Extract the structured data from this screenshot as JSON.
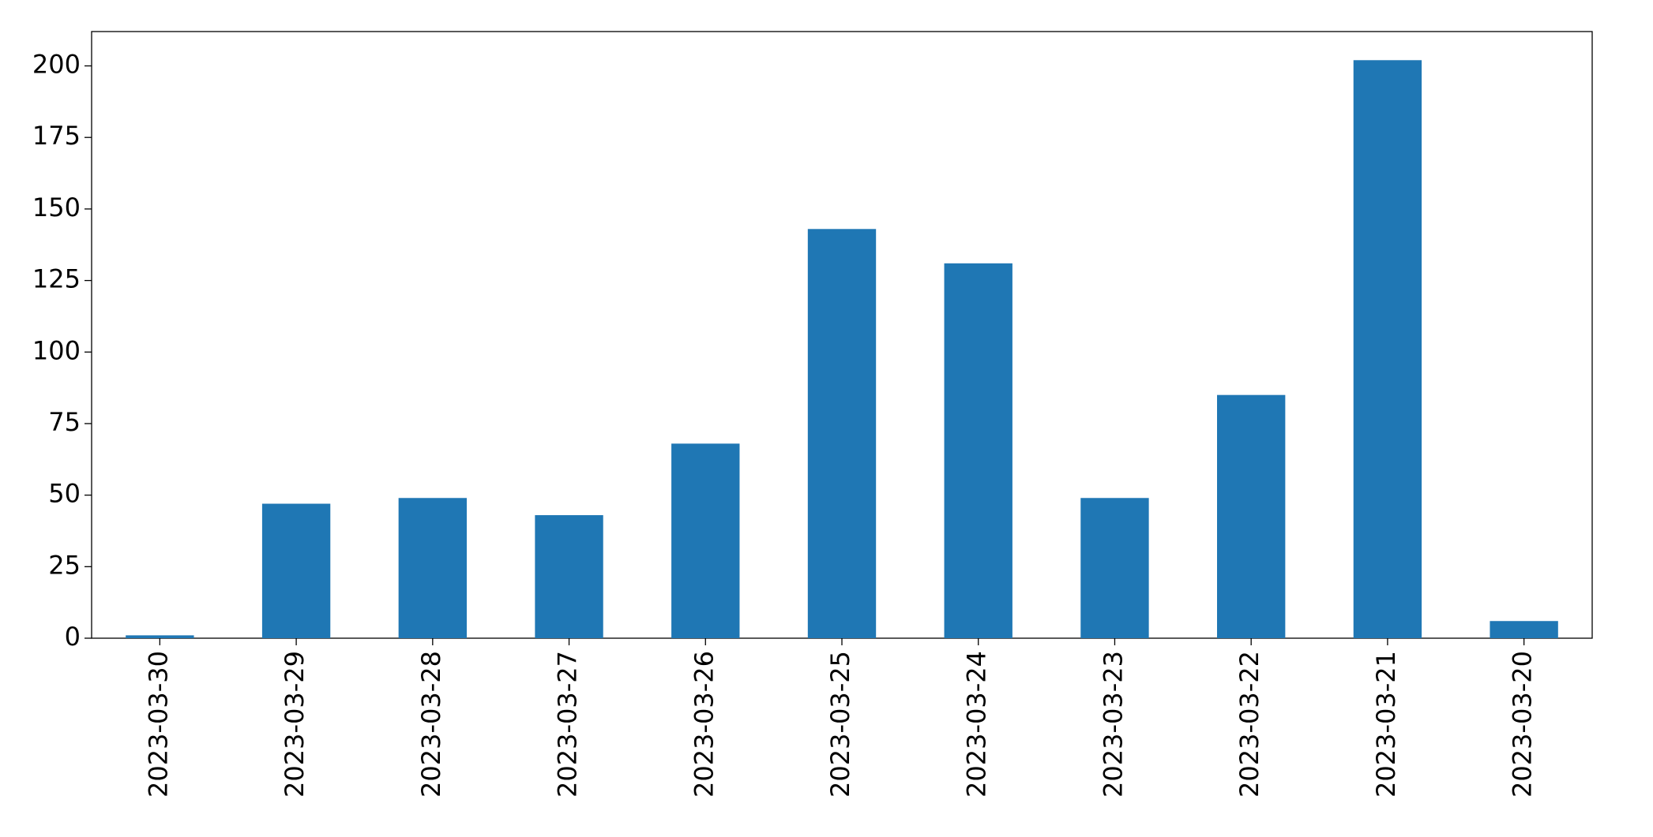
{
  "chart_data": {
    "type": "bar",
    "categories": [
      "2023-03-30",
      "2023-03-29",
      "2023-03-28",
      "2023-03-27",
      "2023-03-26",
      "2023-03-25",
      "2023-03-24",
      "2023-03-23",
      "2023-03-22",
      "2023-03-21",
      "2023-03-20"
    ],
    "values": [
      1,
      47,
      49,
      43,
      68,
      143,
      131,
      49,
      85,
      202,
      6
    ],
    "color": "#1f77b4",
    "ylim": [
      0,
      212
    ],
    "yticks": [
      0,
      25,
      50,
      75,
      100,
      125,
      150,
      175,
      200
    ],
    "grid": false
  }
}
